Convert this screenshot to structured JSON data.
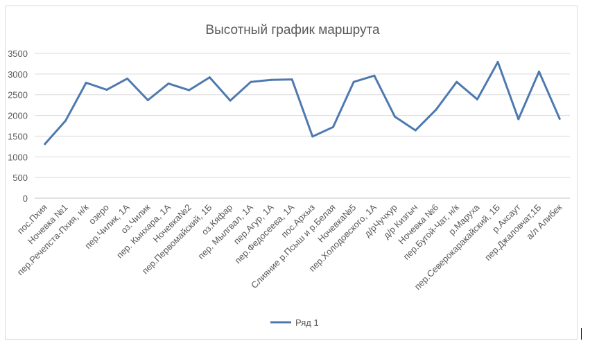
{
  "chart_data": {
    "type": "line",
    "title": "Высотный график маршрута",
    "xlabel": "",
    "ylabel": "",
    "ylim": [
      0,
      3500
    ],
    "yticks": [
      0,
      500,
      1000,
      1500,
      2000,
      2500,
      3000,
      3500
    ],
    "grid": true,
    "legend_position": "bottom",
    "categories": [
      "пос.Пхия",
      "Ночевка №1",
      "пер.Речепста-Пхия, н/к",
      "озеро",
      "пер.Чилик, 1А",
      "оз.Чилик",
      "пер. Кынхара, 1А",
      "Ночевка№2",
      "пер.Первомайский, 1Б",
      "оз.Кяфар",
      "пер. Мылгвал, 1А",
      "пер.Агур, 1А",
      "пер.Федосеева, 1А",
      "пос.Архыз",
      "Слияние р.Псыш и р.Белая",
      "Ночевка№5",
      "пер.Холодовского, 1А",
      "д/рЧучхур",
      "д/р Кизгыч",
      "Ночевка №6",
      "пер.Бугой-Чат, н/к",
      "р.Маруха",
      "пер.Северокаракайский, 1Б",
      "р.Аксаут",
      "пер.Джаловчат,1Б",
      "а/л Алибек"
    ],
    "series": [
      {
        "name": "Ряд 1",
        "color": "#4e79b0",
        "values": [
          1310,
          1870,
          2790,
          2620,
          2890,
          2370,
          2770,
          2610,
          2920,
          2360,
          2810,
          2860,
          2870,
          1490,
          1720,
          2810,
          2960,
          1970,
          1640,
          2140,
          2810,
          2390,
          3290,
          1910,
          3060,
          1920
        ]
      }
    ]
  }
}
